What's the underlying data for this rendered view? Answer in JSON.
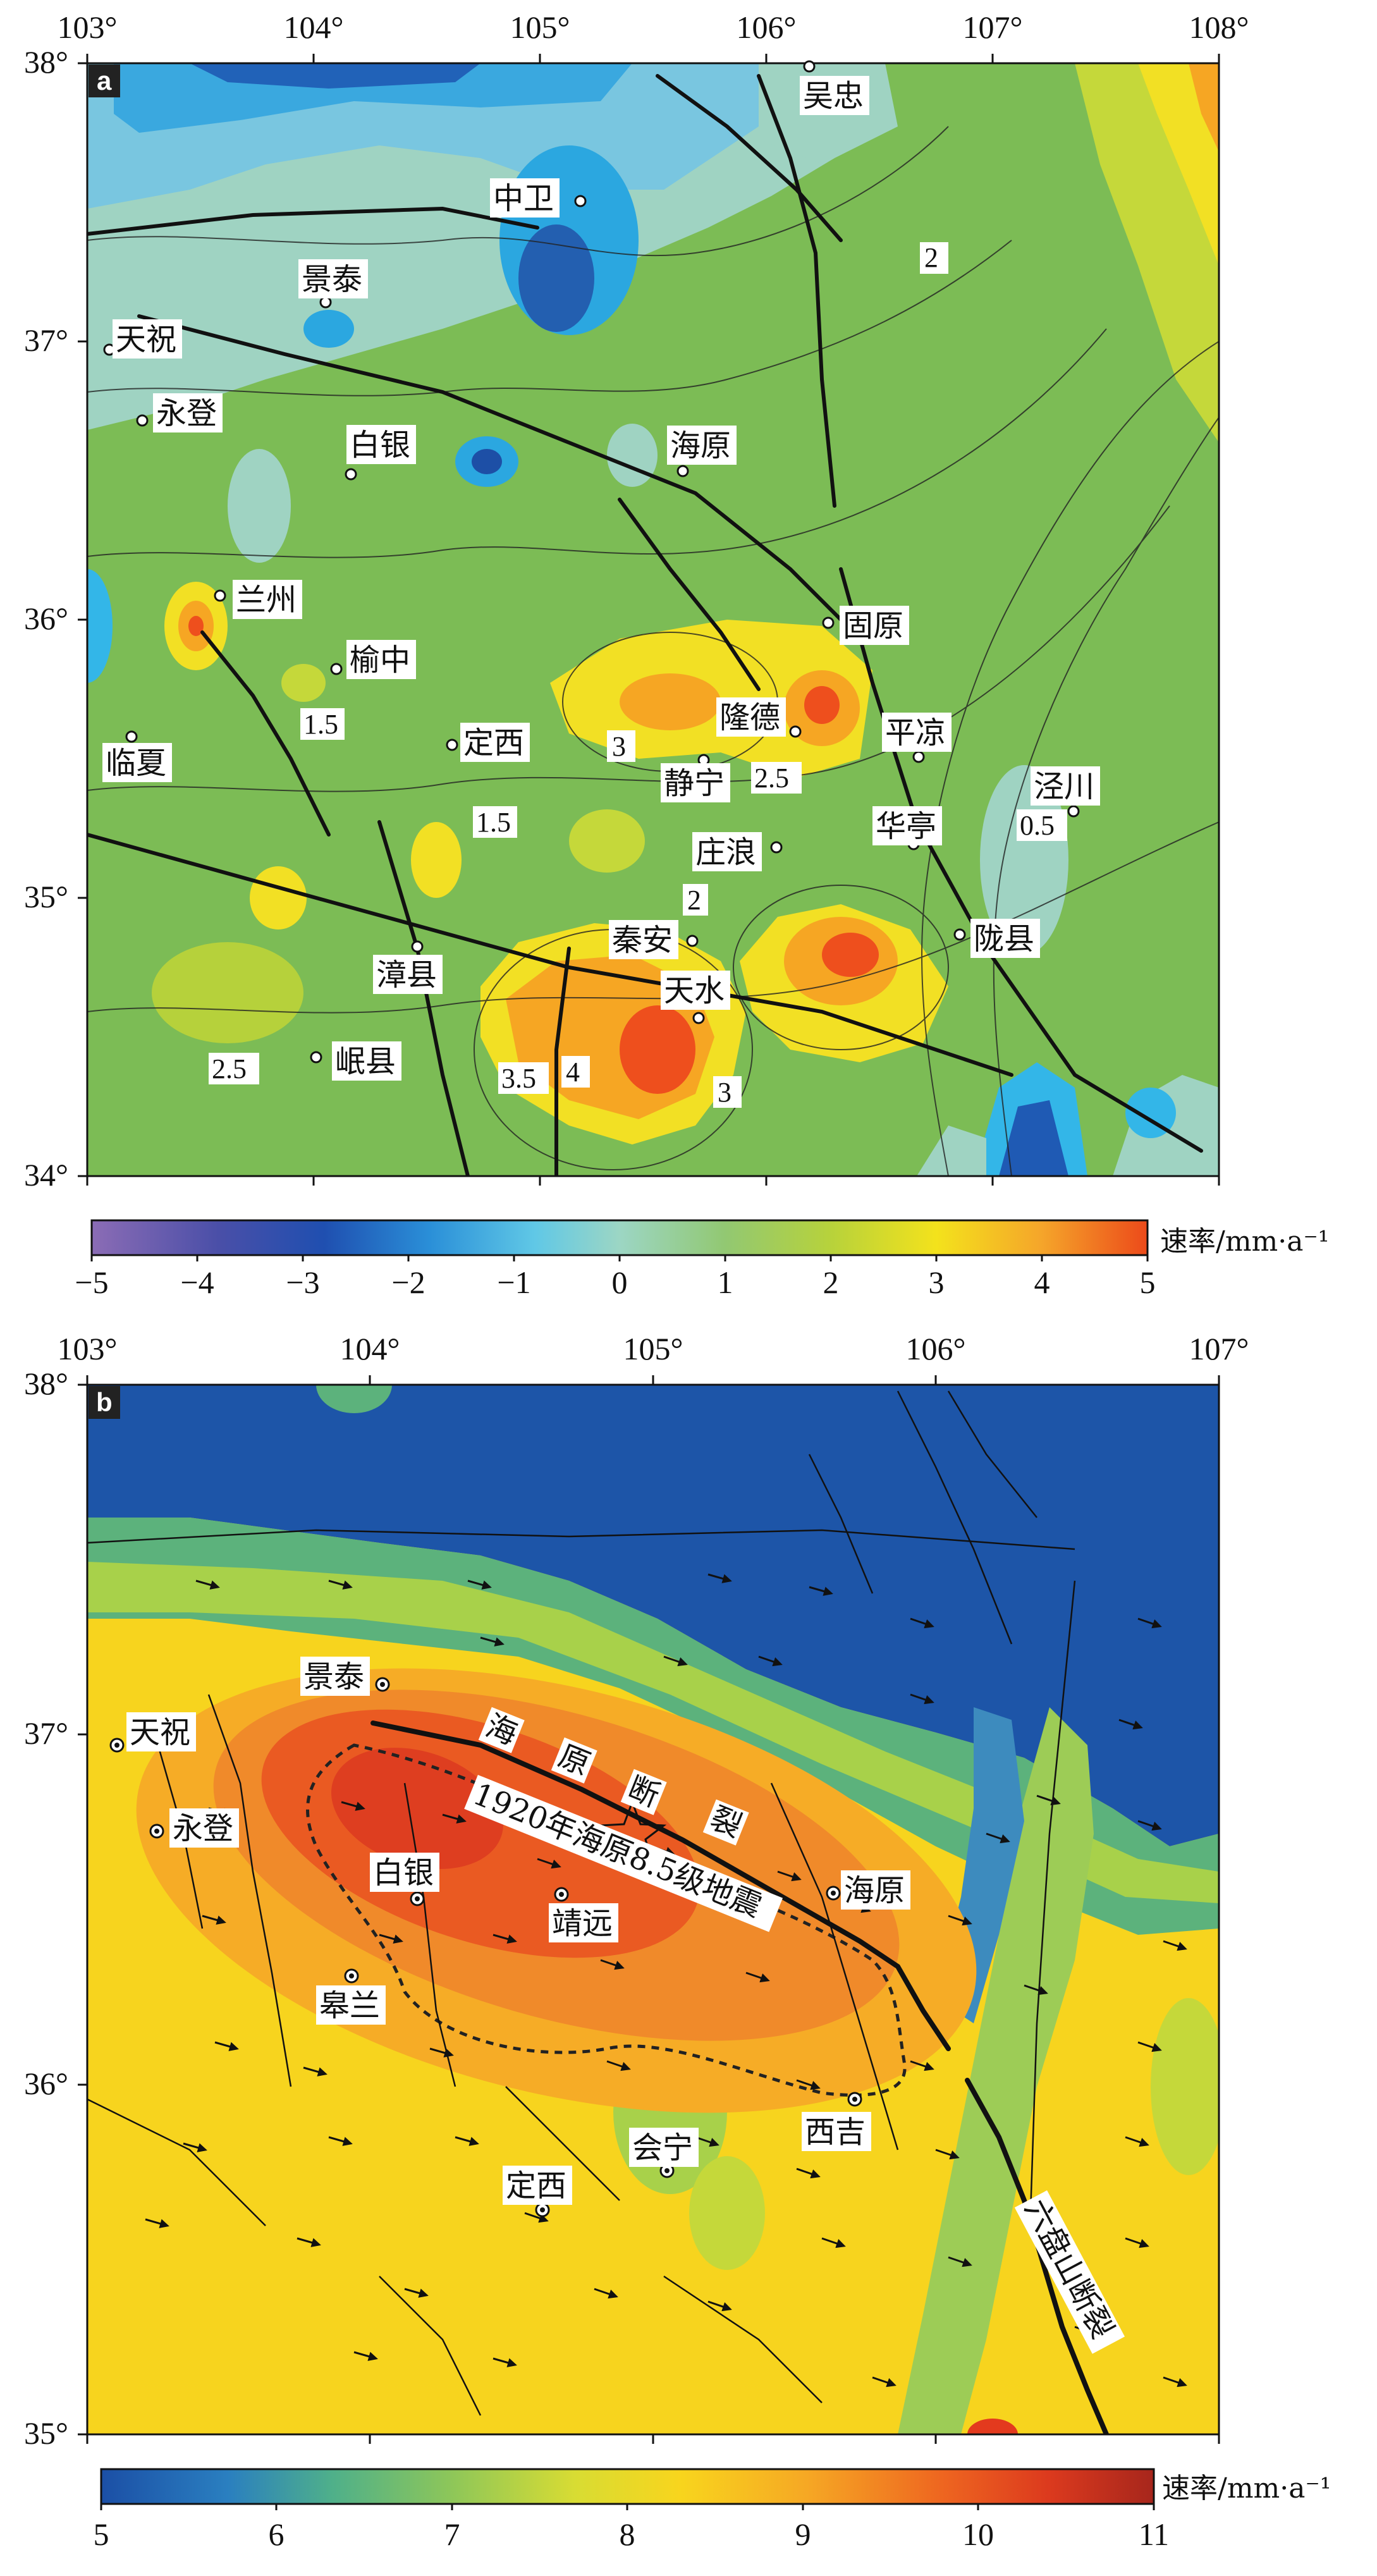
{
  "panel_a": {
    "letter": "a",
    "lon_ticks": [
      "103°",
      "104°",
      "105°",
      "106°",
      "107°",
      "108°"
    ],
    "lat_ticks": [
      "38°",
      "37°",
      "36°",
      "35°",
      "34°"
    ],
    "cities": [
      "吴忠",
      "中卫",
      "景泰",
      "天祝",
      "永登",
      "白银",
      "海原",
      "兰州",
      "固原",
      "榆中",
      "隆德",
      "平凉",
      "临夏",
      "定西",
      "静宁",
      "泾川",
      "华亭",
      "庄浪",
      "秦安",
      "陇县",
      "漳县",
      "天水",
      "岷县"
    ],
    "contour_labels": [
      "2",
      "1.5",
      "3",
      "2.5",
      "1.5",
      "0.5",
      "2",
      "2.5",
      "3.5",
      "4",
      "3"
    ],
    "colorbar": {
      "ticks": [
        "−5",
        "−4",
        "−3",
        "−2",
        "−1",
        "0",
        "1",
        "2",
        "3",
        "4",
        "5"
      ],
      "unit": "速率/mm·a⁻¹"
    }
  },
  "panel_b": {
    "letter": "b",
    "lon_ticks": [
      "103°",
      "104°",
      "105°",
      "106°",
      "107°"
    ],
    "lat_ticks": [
      "38°",
      "37°",
      "36°",
      "35°"
    ],
    "cities": [
      "景泰",
      "天祝",
      "永登",
      "白银",
      "靖远",
      "海原",
      "皋兰",
      "西吉",
      "会宁",
      "定西"
    ],
    "fault_haiyuan": [
      "海",
      "原",
      "断",
      "裂"
    ],
    "quake_label": "1920年海原8.5级地震",
    "liupanshan_label": "六盘山断裂",
    "colorbar": {
      "ticks": [
        "5",
        "6",
        "7",
        "8",
        "9",
        "10",
        "11"
      ],
      "unit": "速率/mm·a⁻¹"
    }
  },
  "colors": {
    "scale_a": [
      "#7d5ea8",
      "#2c3f9c",
      "#1f70c8",
      "#33b6e8",
      "#93d5d0",
      "#7fc05a",
      "#b6d13b",
      "#f5e11d",
      "#f6a623",
      "#ee4f1d"
    ],
    "scale_b": [
      "#1b4fa6",
      "#2a7fc0",
      "#54b478",
      "#b9d245",
      "#f7d41e",
      "#f39a25",
      "#e33a1e",
      "#b4261a"
    ]
  }
}
